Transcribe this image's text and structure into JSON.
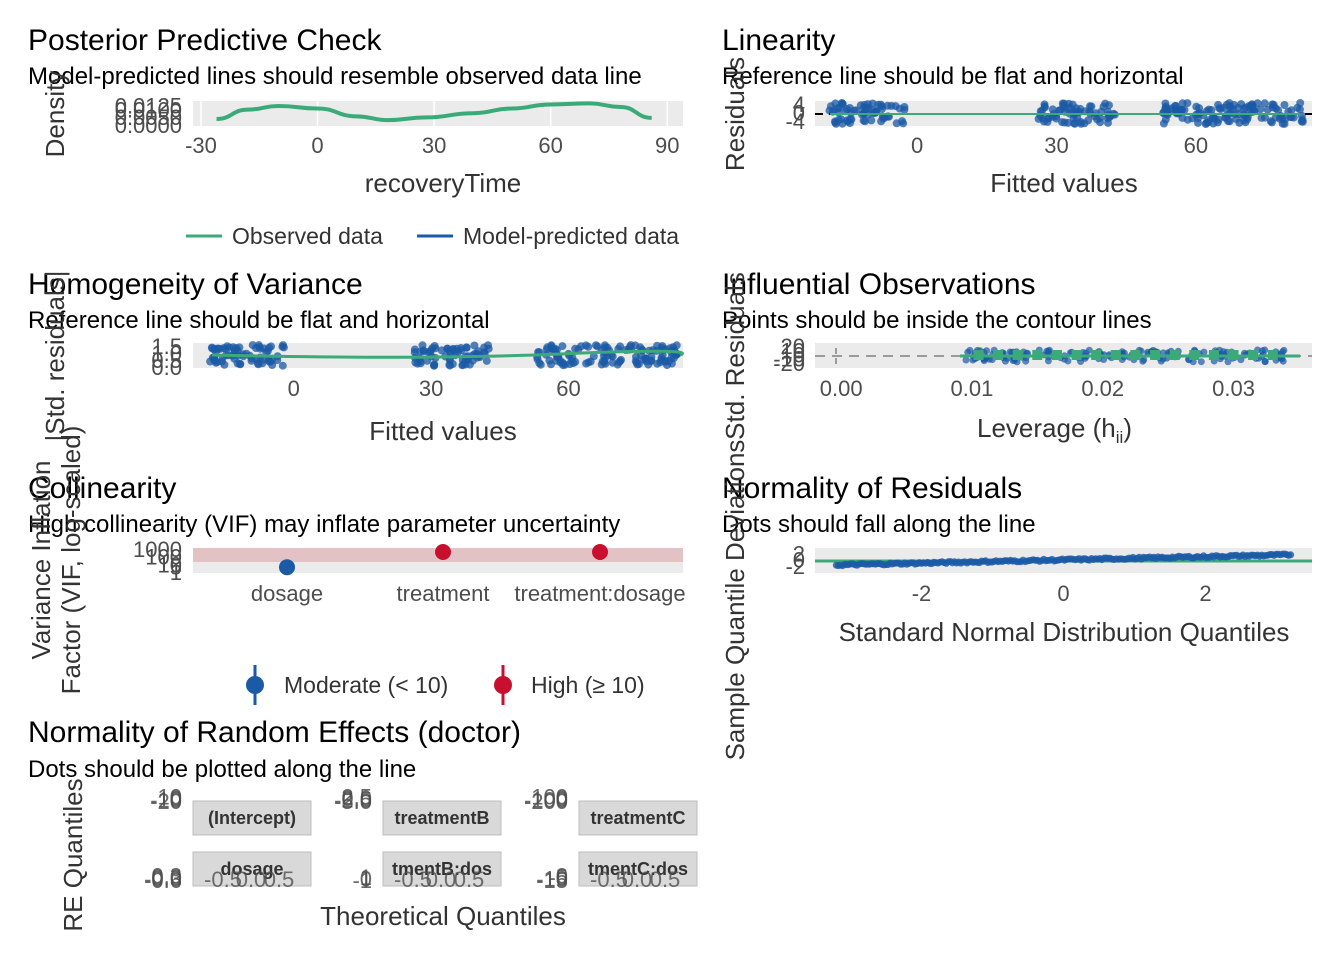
{
  "chart_data": [
    {
      "id": "ppc",
      "type": "line",
      "title": "Posterior Predictive Check",
      "subtitle": "Model-predicted lines should resemble observed data line",
      "xlabel": "recoveryTime",
      "ylabel": "Density",
      "xlim": [
        -30,
        92
      ],
      "ylim": [
        0,
        0.016
      ],
      "x_ticks": [
        "-30",
        "0",
        "30",
        "60",
        "90"
      ],
      "x_tick_values": [
        -30,
        0,
        30,
        60,
        90
      ],
      "y_ticks": [
        "0.0000",
        "0.0050",
        "0.0100",
        "0.0125"
      ],
      "y_tick_values": [
        0.0,
        0.005,
        0.01,
        0.0125
      ],
      "legend": [
        "Observed data",
        "Model-predicted data"
      ],
      "series": [
        {
          "name": "Observed data",
          "color": "#3aaa78",
          "x": [
            -26,
            -18,
            -10,
            0,
            10,
            18,
            28,
            40,
            50,
            60,
            70,
            78,
            86
          ],
          "y": [
            0.0045,
            0.0105,
            0.0128,
            0.0112,
            0.0062,
            0.0038,
            0.0055,
            0.0082,
            0.0112,
            0.0138,
            0.0145,
            0.0122,
            0.0052
          ]
        }
      ]
    },
    {
      "id": "linearity",
      "type": "scatter",
      "title": "Linearity",
      "subtitle": "Reference line should be flat and horizontal",
      "xlabel": "Fitted values",
      "ylabel": "Residuals",
      "xlim": [
        -22,
        85
      ],
      "ylim": [
        -6,
        6
      ],
      "x_ticks": [
        "0",
        "30",
        "60"
      ],
      "x_tick_values": [
        0,
        30,
        60
      ],
      "y_ticks": [
        "-4",
        "0",
        "4"
      ],
      "y_tick_values": [
        -4,
        0,
        4
      ],
      "clusters": [
        [
          -19,
          -2
        ],
        [
          26,
          43
        ],
        [
          53,
          84
        ]
      ]
    },
    {
      "id": "homogeneity",
      "type": "scatter",
      "title": "Homogeneity of Variance",
      "subtitle": "Reference line should be flat and horizontal",
      "xlabel": "Fitted values",
      "ylabel": "|Std. residuals|",
      "xlim": [
        -22,
        85
      ],
      "ylim": [
        0,
        1.8
      ],
      "x_ticks": [
        "0",
        "30",
        "60"
      ],
      "x_tick_values": [
        0,
        30,
        60
      ],
      "y_ticks": [
        "0.0",
        "0.5",
        "1.0",
        "1.5"
      ],
      "y_tick_values": [
        0.0,
        0.5,
        1.0,
        1.5
      ],
      "clusters": [
        [
          -19,
          -2
        ],
        [
          26,
          43
        ],
        [
          53,
          84
        ]
      ]
    },
    {
      "id": "influential",
      "type": "scatter",
      "title": "Influential Observations",
      "subtitle": "Points should be inside the contour lines",
      "xlabel": "Leverage (h",
      "xlabel_sub": "ii",
      "xlabel_end": ")",
      "ylabel": "Std. Residuals",
      "xlim": [
        -0.002,
        0.036
      ],
      "ylim": [
        -30,
        30
      ],
      "x_ticks": [
        "0.00",
        "0.01",
        "0.02",
        "0.03"
      ],
      "x_tick_values": [
        0.0,
        0.01,
        0.02,
        0.03
      ],
      "y_ticks": [
        "-20",
        "-10",
        "0",
        "10",
        "20"
      ],
      "y_tick_values": [
        -20,
        -10,
        0,
        10,
        20
      ],
      "leverage_range": [
        0.0095,
        0.034
      ]
    },
    {
      "id": "collinearity",
      "type": "scatter",
      "title": "Collinearity",
      "subtitle": "High collinearity (VIF) may inflate parameter uncertainty",
      "ylabel": "Variance Inflation\nFactor (VIF, log-scaled)",
      "categories": [
        "dosage",
        "treatment",
        "treatment:dosage"
      ],
      "values": [
        4,
        1000,
        1000
      ],
      "ylim": [
        1,
        1000
      ],
      "y_scale": "log",
      "y_ticks": [
        "1",
        "5",
        "10",
        "100",
        "1000"
      ],
      "y_tick_values": [
        1,
        5,
        10,
        100,
        1000
      ],
      "legend": [
        "Moderate (< 10)",
        "High (≥ 10)"
      ],
      "colors": {
        "moderate": "#1b5aa6",
        "high": "#c8102e"
      }
    },
    {
      "id": "qq",
      "type": "scatter",
      "title": "Normality of Residuals",
      "subtitle": "Dots should fall along the line",
      "xlabel": "Standard Normal Distribution Quantiles",
      "ylabel": "Sample Quantile Deviations",
      "xlim": [
        -3.5,
        3.5
      ],
      "ylim": [
        -4,
        4
      ],
      "x_ticks": [
        "-2",
        "0",
        "2"
      ],
      "x_tick_values": [
        -2,
        0,
        2
      ],
      "y_ticks": [
        "-2",
        "0",
        "2"
      ],
      "y_tick_values": [
        -2,
        0,
        2
      ]
    },
    {
      "id": "re",
      "type": "scatter",
      "title": "Normality of Random Effects (doctor)",
      "subtitle": "Dots should be plotted along the line",
      "xlabel": "Theoretical Quantiles",
      "ylabel": "RE Quantiles",
      "facets": [
        {
          "label": "(Intercept)",
          "ticks": [
            "-20",
            "-10",
            "0",
            "10"
          ]
        },
        {
          "label": "treatmentB",
          "ticks": [
            "-5.0",
            "-2.5",
            "0.0",
            "2.5"
          ]
        },
        {
          "label": "treatmentC",
          "ticks": [
            "-200",
            "-100",
            "0",
            "100"
          ]
        },
        {
          "label": "dosage",
          "ticks": [
            "-0.6",
            "-0.3",
            "0.0",
            "0.3"
          ]
        },
        {
          "label": "tmentB:dos",
          "ticks": [
            "-1",
            "0",
            "1"
          ]
        },
        {
          "label": "tmentC:dos",
          "ticks": [
            "-15",
            "-10",
            "-5",
            "0"
          ]
        }
      ],
      "x_ticks": [
        "-0.5",
        "0.0",
        "0.5"
      ]
    }
  ],
  "colors": {
    "green": "#3aaa78",
    "blue": "#1b5aa6",
    "red": "#c8102e",
    "grid": "#d9d9d9",
    "panel": "#ebebeb"
  }
}
